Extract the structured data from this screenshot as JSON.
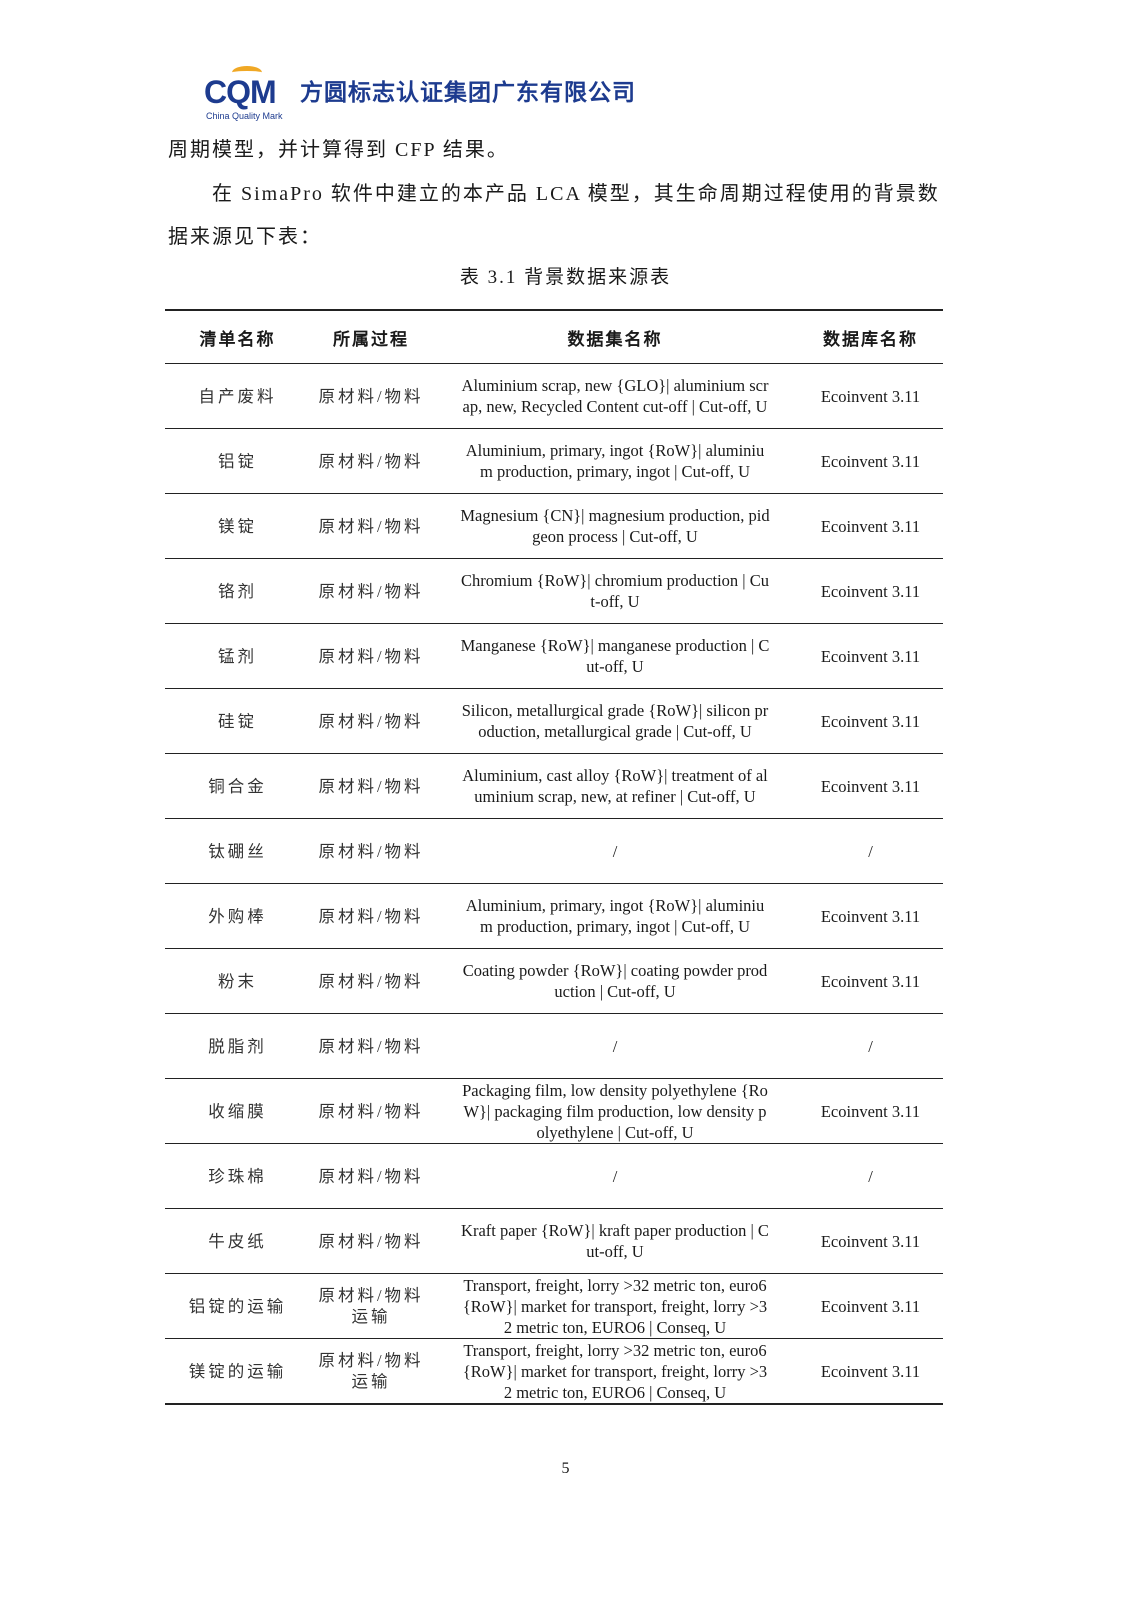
{
  "header": {
    "logo_mark": "CQM",
    "logo_subtitle": "China Quality Mark",
    "company_name": "方圆标志认证集团广东有限公司",
    "brand_color": "#1d3b8f",
    "accent_color": "#f0a825"
  },
  "body": {
    "line1": "周期模型，并计算得到 CFP 结果。",
    "line2": "在 SimaPro 软件中建立的本产品 LCA 模型，其生命周期过程使用的背景数",
    "line3": "据来源见下表："
  },
  "table": {
    "caption": "表 3.1 背景数据来源表",
    "headers": [
      "清单名称",
      "所属过程",
      "数据集名称",
      "数据库名称"
    ],
    "rows": [
      [
        "自产废料",
        "原材料/物料",
        "Aluminium scrap, new {GLO}| aluminium scr\nap, new, Recycled Content cut-off | Cut-off, U",
        "Ecoinvent 3.11"
      ],
      [
        "铝锭",
        "原材料/物料",
        "Aluminium, primary, ingot {RoW}| aluminiu\nm production, primary, ingot | Cut-off, U",
        "Ecoinvent 3.11"
      ],
      [
        "镁锭",
        "原材料/物料",
        "Magnesium {CN}| magnesium production, pid\ngeon process | Cut-off, U",
        "Ecoinvent 3.11"
      ],
      [
        "铬剂",
        "原材料/物料",
        "Chromium {RoW}| chromium production | Cu\nt-off, U",
        "Ecoinvent 3.11"
      ],
      [
        "锰剂",
        "原材料/物料",
        "Manganese {RoW}| manganese production | C\nut-off, U",
        "Ecoinvent 3.11"
      ],
      [
        "硅锭",
        "原材料/物料",
        "Silicon, metallurgical grade {RoW}| silicon pr\noduction, metallurgical grade | Cut-off, U",
        "Ecoinvent 3.11"
      ],
      [
        "铜合金",
        "原材料/物料",
        "Aluminium, cast alloy {RoW}| treatment of al\numinium scrap, new, at refiner | Cut-off, U",
        "Ecoinvent 3.11"
      ],
      [
        "钛硼丝",
        "原材料/物料",
        "/",
        "/"
      ],
      [
        "外购棒",
        "原材料/物料",
        "Aluminium, primary, ingot {RoW}| aluminiu\nm production, primary, ingot | Cut-off, U",
        "Ecoinvent 3.11"
      ],
      [
        "粉末",
        "原材料/物料",
        "Coating powder {RoW}| coating powder prod\nuction | Cut-off, U",
        "Ecoinvent 3.11"
      ],
      [
        "脱脂剂",
        "原材料/物料",
        "/",
        "/"
      ],
      [
        "收缩膜",
        "原材料/物料",
        "Packaging film, low density polyethylene {Ro\nW}| packaging film production, low density p\nolyethylene | Cut-off, U",
        "Ecoinvent 3.11"
      ],
      [
        "珍珠棉",
        "原材料/物料",
        "/",
        "/"
      ],
      [
        "牛皮纸",
        "原材料/物料",
        "Kraft paper {RoW}| kraft paper production | C\nut-off, U",
        "Ecoinvent 3.11"
      ],
      [
        "铝锭的运输",
        "原材料/物料\n运输",
        "Transport, freight, lorry >32 metric ton, euro6\n{RoW}| market for transport, freight, lorry >3\n2 metric ton, EURO6 | Conseq, U",
        "Ecoinvent 3.11"
      ],
      [
        "镁锭的运输",
        "原材料/物料\n运输",
        "Transport, freight, lorry >32 metric ton, euro6\n{RoW}| market for transport, freight, lorry >3\n2 metric ton, EURO6 | Conseq, U",
        "Ecoinvent 3.11"
      ]
    ]
  },
  "footer": {
    "page_number": "5"
  }
}
